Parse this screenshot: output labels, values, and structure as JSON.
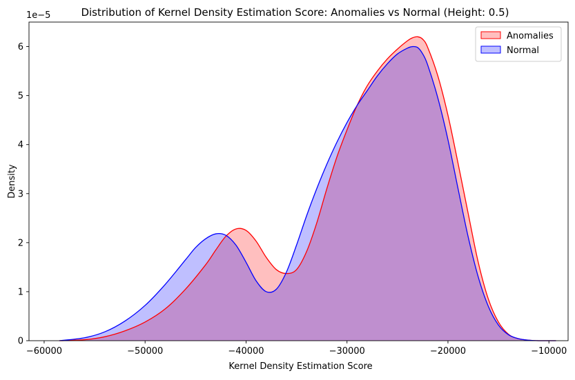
{
  "chart_data": {
    "type": "area",
    "title": "Distribution of Kernel Density Estimation Score: Anomalies vs Normal (Height: 0.5)",
    "xlabel": "Kernel Density Estimation Score",
    "ylabel": "Density",
    "y_offset_label": "1e−5",
    "xlim": [
      -61500,
      -8100
    ],
    "ylim": [
      0,
      6.5
    ],
    "x_ticks": [
      -60000,
      -50000,
      -40000,
      -30000,
      -20000,
      -10000
    ],
    "x_tick_labels": [
      "−60000",
      "−50000",
      "−40000",
      "−30000",
      "−20000",
      "−10000"
    ],
    "y_ticks": [
      0,
      1,
      2,
      3,
      4,
      5,
      6
    ],
    "y_tick_labels": [
      "0",
      "1",
      "2",
      "3",
      "4",
      "5",
      "6"
    ],
    "grid": false,
    "legend_position": "top-right",
    "series": [
      {
        "name": "Anomalies",
        "color": "#ff0000",
        "fill": "rgba(255,0,0,0.25)",
        "x": [
          -58500,
          -56000,
          -54000,
          -52000,
          -50000,
          -48000,
          -46000,
          -44000,
          -43000,
          -42000,
          -41000,
          -40000,
          -39000,
          -38000,
          -37000,
          -36000,
          -35000,
          -34000,
          -33000,
          -32000,
          -31000,
          -30000,
          -29000,
          -28000,
          -27000,
          -26000,
          -25000,
          -24000,
          -23500,
          -23000,
          -22500,
          -22000,
          -21000,
          -20000,
          -19000,
          -18000,
          -17000,
          -16000,
          -15000,
          -14000,
          -13000,
          -12000,
          -11000,
          -9300
        ],
        "y": [
          0.0,
          0.02,
          0.08,
          0.2,
          0.38,
          0.65,
          1.05,
          1.55,
          1.85,
          2.13,
          2.28,
          2.25,
          2.03,
          1.7,
          1.45,
          1.37,
          1.45,
          1.82,
          2.4,
          3.1,
          3.75,
          4.3,
          4.8,
          5.2,
          5.5,
          5.75,
          5.95,
          6.12,
          6.18,
          6.2,
          6.15,
          5.98,
          5.4,
          4.6,
          3.62,
          2.6,
          1.6,
          0.85,
          0.38,
          0.13,
          0.04,
          0.01,
          0.0,
          0.0
        ]
      },
      {
        "name": "Normal",
        "color": "#0000ff",
        "fill": "rgba(0,0,255,0.25)",
        "x": [
          -58500,
          -56000,
          -54000,
          -52000,
          -50000,
          -48000,
          -46000,
          -45000,
          -44000,
          -43000,
          -42000,
          -41000,
          -40000,
          -39000,
          -38000,
          -37000,
          -36000,
          -35000,
          -34000,
          -33000,
          -32000,
          -31000,
          -30000,
          -29000,
          -28000,
          -27000,
          -26000,
          -25000,
          -24000,
          -23500,
          -23000,
          -22500,
          -22000,
          -21000,
          -20000,
          -19000,
          -18000,
          -17000,
          -16000,
          -15000,
          -14000,
          -13000,
          -12000,
          -11000,
          -9300
        ],
        "y": [
          0.0,
          0.06,
          0.18,
          0.4,
          0.72,
          1.15,
          1.65,
          1.9,
          2.08,
          2.18,
          2.15,
          1.95,
          1.6,
          1.22,
          1.0,
          1.05,
          1.4,
          1.95,
          2.55,
          3.1,
          3.6,
          4.05,
          4.45,
          4.8,
          5.1,
          5.4,
          5.65,
          5.85,
          5.97,
          6.0,
          5.98,
          5.85,
          5.62,
          4.95,
          4.1,
          3.1,
          2.12,
          1.3,
          0.7,
          0.32,
          0.12,
          0.04,
          0.01,
          0.0,
          0.0
        ]
      }
    ]
  }
}
